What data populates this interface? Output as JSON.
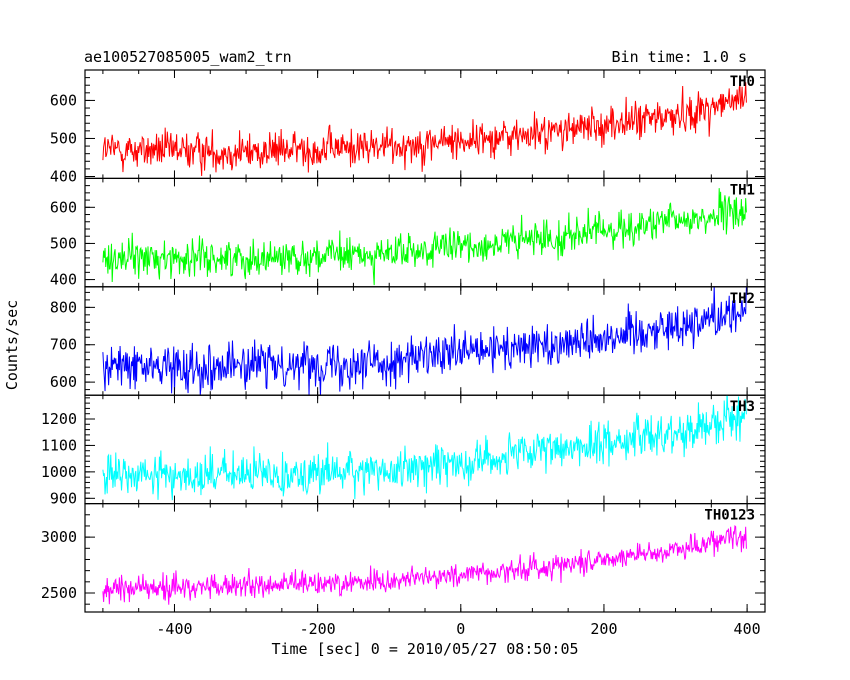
{
  "chart_data": {
    "type": "line",
    "title": "ae100527085005_wam2_trn",
    "bin_label": "Bin time: 1.0 s",
    "xlabel": "Time [sec] 0 = 2010/05/27 08:50:05",
    "ylabel": "Counts/sec",
    "xlim": [
      -525,
      425
    ],
    "xticks": [
      -400,
      -200,
      0,
      200,
      400
    ],
    "x_range": [
      -500,
      399
    ],
    "bin_time": 1.0,
    "grid": false,
    "series": [
      {
        "name": "TH0",
        "color": "#ff0000",
        "ylim": [
          395,
          680
        ],
        "yticks": [
          400,
          500,
          600
        ],
        "trend": [
          [
            -500,
            470
          ],
          [
            -300,
            465
          ],
          [
            -100,
            480
          ],
          [
            100,
            510
          ],
          [
            300,
            560
          ],
          [
            399,
            605
          ]
        ],
        "noise": 25
      },
      {
        "name": "TH1",
        "color": "#00ff00",
        "ylim": [
          380,
          680
        ],
        "yticks": [
          400,
          500,
          600
        ],
        "trend": [
          [
            -500,
            460
          ],
          [
            -300,
            460
          ],
          [
            -100,
            470
          ],
          [
            100,
            510
          ],
          [
            300,
            560
          ],
          [
            399,
            590
          ]
        ],
        "noise": 25
      },
      {
        "name": "TH2",
        "color": "#0000ff",
        "ylim": [
          565,
          855
        ],
        "yticks": [
          600,
          700,
          800
        ],
        "trend": [
          [
            -500,
            640
          ],
          [
            -300,
            645
          ],
          [
            -100,
            655
          ],
          [
            100,
            695
          ],
          [
            300,
            750
          ],
          [
            399,
            795
          ]
        ],
        "noise": 30
      },
      {
        "name": "TH3",
        "color": "#00ffff",
        "ylim": [
          880,
          1290
        ],
        "yticks": [
          900,
          1000,
          1100,
          1200
        ],
        "trend": [
          [
            -500,
            985
          ],
          [
            -300,
            990
          ],
          [
            -100,
            1005
          ],
          [
            100,
            1070
          ],
          [
            300,
            1150
          ],
          [
            399,
            1215
          ]
        ],
        "noise": 40
      },
      {
        "name": "TH0123",
        "color": "#ff00ff",
        "ylim": [
          2330,
          3300
        ],
        "yticks": [
          2500,
          3000
        ],
        "trend": [
          [
            -500,
            2540
          ],
          [
            -300,
            2560
          ],
          [
            -100,
            2610
          ],
          [
            100,
            2720
          ],
          [
            300,
            2890
          ],
          [
            399,
            3030
          ]
        ],
        "noise": 55
      }
    ]
  }
}
